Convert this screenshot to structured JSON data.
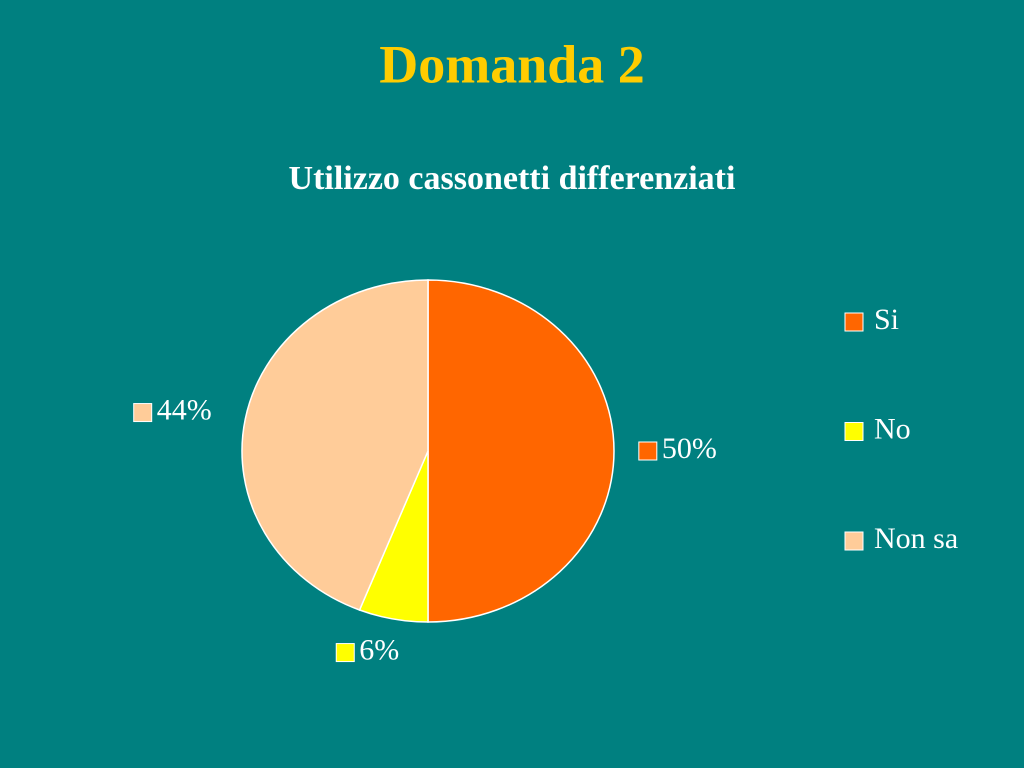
{
  "slide_title": "Domanda 2",
  "chart_data": {
    "type": "pie",
    "title": "Utilizzo cassonetti differenziati",
    "categories": [
      "Si",
      "No",
      "Non sa"
    ],
    "values": [
      50,
      6,
      44
    ],
    "value_labels": [
      "50%",
      "6%",
      "44%"
    ],
    "colors": [
      "#ff6600",
      "#ffff00",
      "#ffcc99"
    ],
    "legend": "right"
  }
}
